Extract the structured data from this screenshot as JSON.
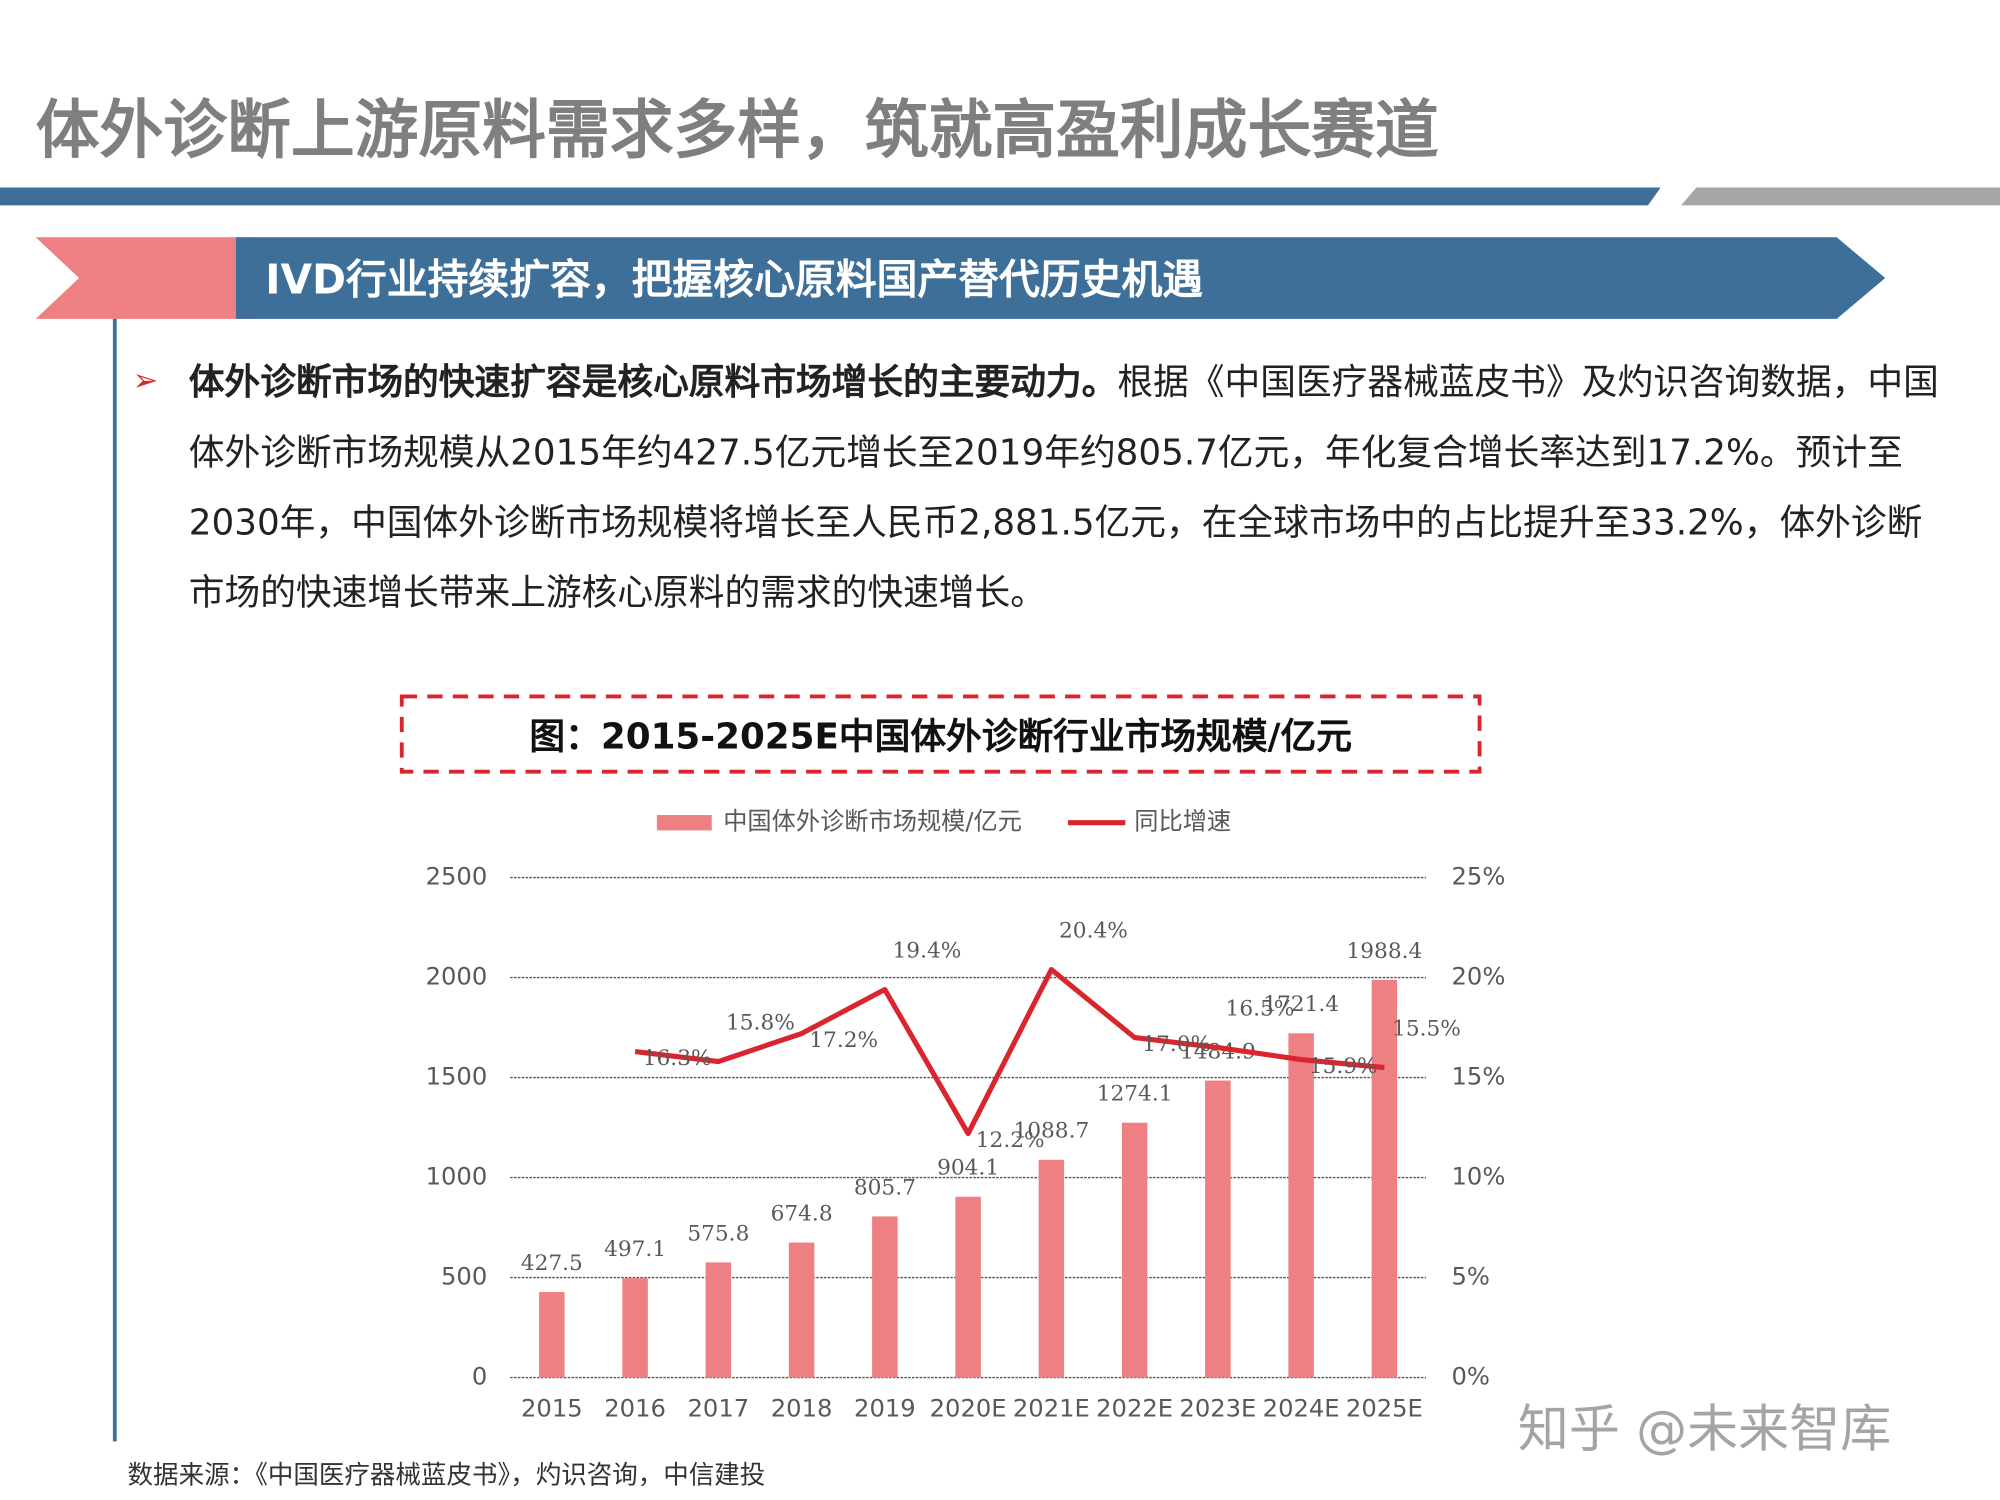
{
  "header": {
    "title": "体外诊断上游原料需求多样，筑就高盈利成长赛道"
  },
  "banner": {
    "title": "IVD行业持续扩容，把握核心原料国产替代历史机遇"
  },
  "paragraph": {
    "lead": "体外诊断市场的快速扩容是核心原料市场增长的主要动力。",
    "body": "根据《中国医疗器械蓝皮书》及灼识咨询数据，中国体外诊断市场规模从2015年约427.5亿元增长至2019年约805.7亿元，年化复合增长率达到17.2%。预计至2030年，中国体外诊断市场规模将增长至人民币2,881.5亿元，在全球市场中的占比提升至33.2%，体外诊断市场的快速增长带来上游核心原料的需求的快速增长。"
  },
  "chart_data": {
    "type": "bar",
    "title": "图：2015-2025E中国体外诊断行业市场规模/亿元",
    "categories": [
      "2015",
      "2016",
      "2017",
      "2018",
      "2019",
      "2020E",
      "2021E",
      "2022E",
      "2023E",
      "2024E",
      "2025E"
    ],
    "series": [
      {
        "name": "中国体外诊断市场规模/亿元",
        "type": "bar",
        "color": "#ee7f82",
        "values": [
          427.5,
          497.1,
          575.8,
          674.8,
          805.7,
          904.1,
          1088.7,
          1274.1,
          1484.9,
          1721.4,
          1988.4
        ]
      },
      {
        "name": "同比增速",
        "type": "line",
        "axis": "y2",
        "color": "#d9262e",
        "values": [
          null,
          16.3,
          15.8,
          17.2,
          19.4,
          12.2,
          20.4,
          17.0,
          16.5,
          15.9,
          15.5
        ],
        "value_labels": [
          null,
          "16.3%",
          "15.8%",
          "17.2%",
          "19.4%",
          "12.2%",
          "20.4%",
          "17.0%",
          "16.5%",
          "15.9%",
          "15.5%"
        ]
      }
    ],
    "ylim": [
      0,
      2500
    ],
    "yticks": [
      0,
      500,
      1000,
      1500,
      2000,
      2500
    ],
    "y2lim": [
      0,
      25
    ],
    "y2ticks": [
      {
        "value": 0,
        "label": "0%"
      },
      {
        "value": 5,
        "label": "5%"
      },
      {
        "value": 10,
        "label": "10%"
      },
      {
        "value": 15,
        "label": "15%"
      },
      {
        "value": 20,
        "label": "20%"
      },
      {
        "value": 25,
        "label": "25%"
      }
    ],
    "grid": true,
    "legend": "top"
  },
  "source": "数据来源：《中国医疗器械蓝皮书》，灼识咨询，中信建投",
  "watermark": "知乎 @未来智库"
}
